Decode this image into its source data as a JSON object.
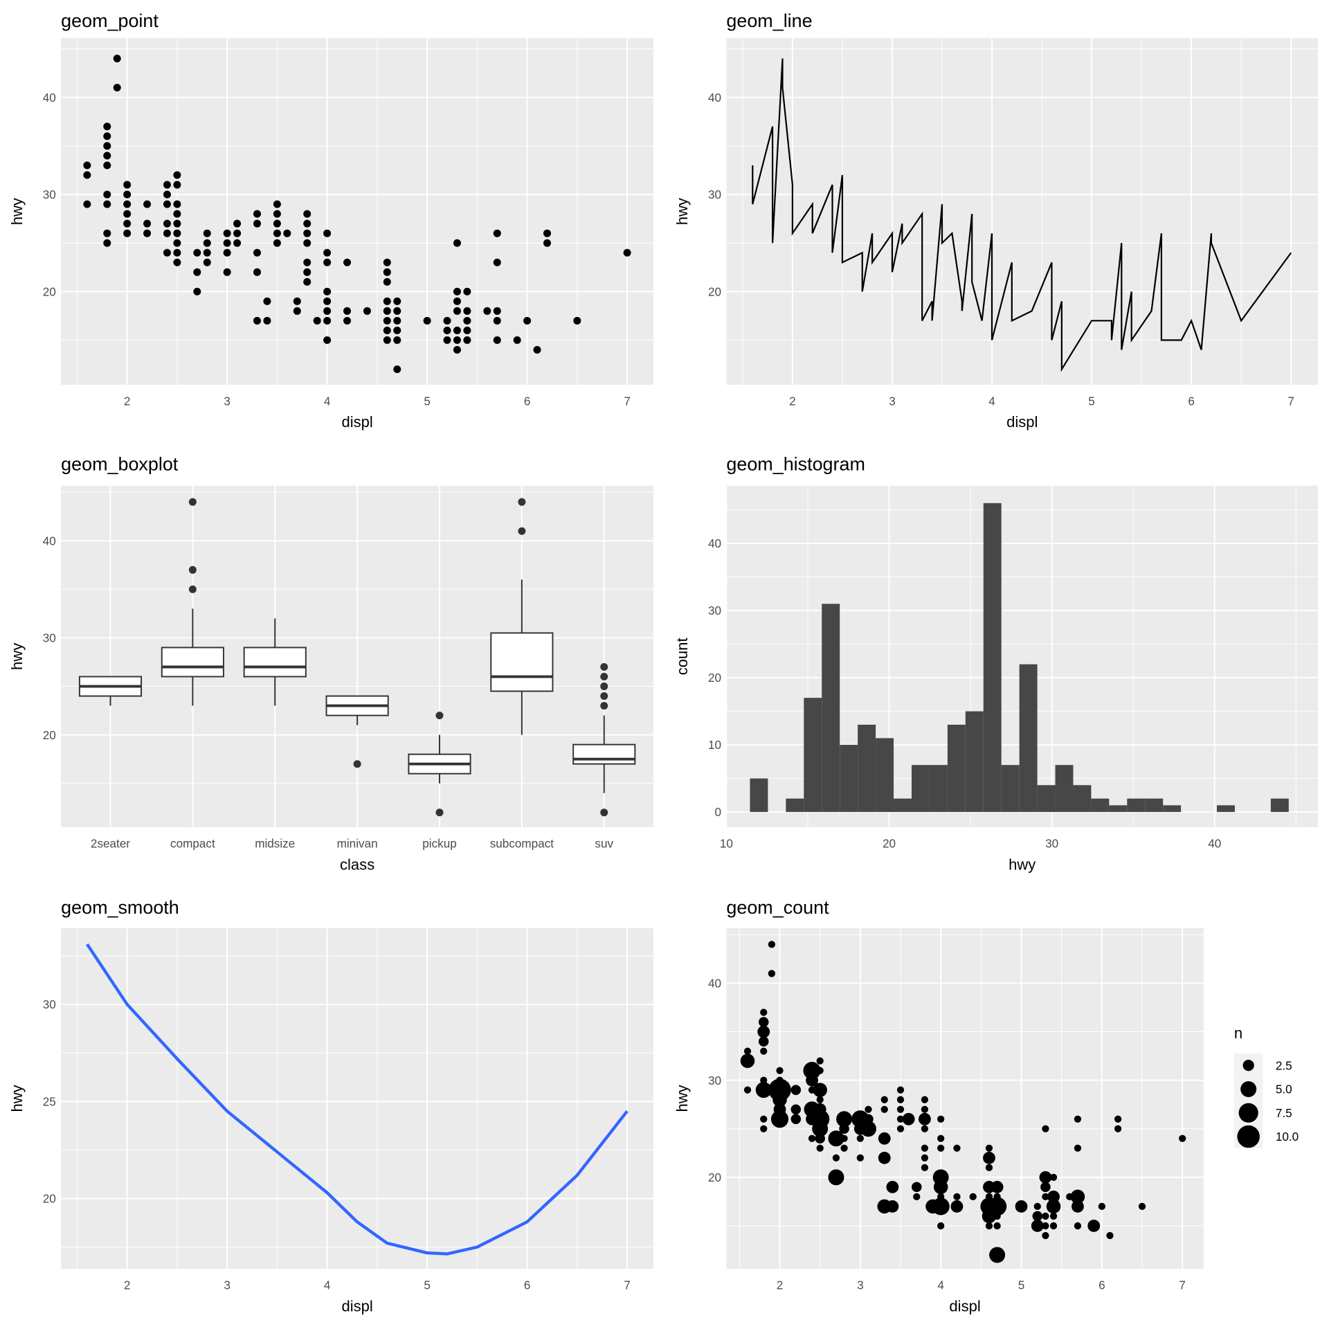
{
  "chart_data": [
    {
      "type": "scatter",
      "title": "geom_point",
      "xlabel": "displ",
      "ylabel": "hwy",
      "xticks": [
        2,
        3,
        4,
        5,
        6,
        7
      ],
      "yticks": [
        20,
        30,
        40
      ],
      "points_by_displ": {
        "1.6": [
          33,
          32,
          29
        ],
        "1.8": [
          37,
          36,
          35,
          34,
          33,
          30,
          29,
          26,
          25
        ],
        "1.9": [
          44,
          41
        ],
        "2.0": [
          31,
          30,
          29,
          28,
          27,
          26
        ],
        "2.2": [
          29,
          27,
          26
        ],
        "2.4": [
          31,
          30,
          29,
          27,
          26,
          24
        ],
        "2.5": [
          32,
          31,
          29,
          28,
          27,
          26,
          25,
          24,
          23
        ],
        "2.7": [
          24,
          22,
          20
        ],
        "2.8": [
          26,
          25,
          24,
          23
        ],
        "3.0": [
          26,
          25,
          24,
          22
        ],
        "3.1": [
          27,
          26,
          25
        ],
        "3.3": [
          28,
          27,
          24,
          22,
          17
        ],
        "3.4": [
          19,
          17
        ],
        "3.5": [
          29,
          28,
          27,
          26,
          25
        ],
        "3.6": [
          26
        ],
        "3.7": [
          19,
          18
        ],
        "3.8": [
          28,
          27,
          26,
          25,
          23,
          22,
          21
        ],
        "3.9": [
          17
        ],
        "4.0": [
          26,
          24,
          23,
          20,
          19,
          18,
          17,
          15
        ],
        "4.2": [
          23,
          18,
          17
        ],
        "4.4": [
          18
        ],
        "4.6": [
          23,
          22,
          21,
          19,
          18,
          17,
          16,
          15
        ],
        "4.7": [
          19,
          18,
          17,
          16,
          15,
          12
        ],
        "5.0": [
          17
        ],
        "5.2": [
          17,
          16,
          15
        ],
        "5.3": [
          25,
          20,
          19,
          18,
          16,
          15,
          14
        ],
        "5.4": [
          20,
          18,
          17,
          16,
          15
        ],
        "5.6": [
          18
        ],
        "5.7": [
          26,
          23,
          18,
          17,
          15
        ],
        "5.9": [
          15
        ],
        "6.0": [
          17
        ],
        "6.1": [
          14
        ],
        "6.2": [
          26,
          25
        ],
        "6.5": [
          17
        ],
        "7.0": [
          24
        ]
      }
    },
    {
      "type": "line",
      "title": "geom_line",
      "xlabel": "displ",
      "ylabel": "hwy",
      "xticks": [
        2,
        3,
        4,
        5,
        6,
        7
      ],
      "yticks": [
        20,
        30,
        40
      ],
      "source": "same points as geom_point, connected in order of displ"
    },
    {
      "type": "boxplot",
      "title": "geom_boxplot",
      "xlabel": "class",
      "ylabel": "hwy",
      "yticks": [
        20,
        30,
        40
      ],
      "categories": [
        "2seater",
        "compact",
        "midsize",
        "minivan",
        "pickup",
        "subcompact",
        "suv"
      ],
      "boxes": [
        {
          "lower": 23,
          "q1": 24,
          "median": 25,
          "q3": 26,
          "upper": 26,
          "outliers": []
        },
        {
          "lower": 23,
          "q1": 26,
          "median": 27,
          "q3": 29,
          "upper": 33,
          "outliers": [
            35,
            37,
            44
          ]
        },
        {
          "lower": 23,
          "q1": 26,
          "median": 27,
          "q3": 29,
          "upper": 32,
          "outliers": []
        },
        {
          "lower": 21,
          "q1": 22,
          "median": 23,
          "q3": 24,
          "upper": 24,
          "outliers": [
            17
          ]
        },
        {
          "lower": 15,
          "q1": 16,
          "median": 17,
          "q3": 18,
          "upper": 20,
          "outliers": [
            12,
            22
          ]
        },
        {
          "lower": 20,
          "q1": 24.5,
          "median": 26,
          "q3": 30.5,
          "upper": 36,
          "outliers": [
            41,
            44
          ]
        },
        {
          "lower": 14,
          "q1": 17,
          "median": 17.5,
          "q3": 19,
          "upper": 22,
          "outliers": [
            12,
            23,
            24,
            25,
            26,
            27
          ]
        }
      ]
    },
    {
      "type": "bar",
      "title": "geom_histogram",
      "xlabel": "hwy",
      "ylabel": "count",
      "xticks": [
        10,
        20,
        30,
        40
      ],
      "yticks": [
        0,
        10,
        20,
        30,
        40
      ],
      "bin_start": 11.45,
      "binwidth": 1.1034,
      "counts": [
        5,
        0,
        2,
        17,
        31,
        10,
        13,
        11,
        2,
        7,
        7,
        13,
        15,
        46,
        7,
        22,
        4,
        7,
        4,
        2,
        1,
        2,
        2,
        1,
        0,
        0,
        1,
        0,
        0,
        2
      ]
    },
    {
      "type": "line",
      "title": "geom_smooth",
      "xlabel": "displ",
      "ylabel": "hwy",
      "xticks": [
        2,
        3,
        4,
        5,
        6,
        7
      ],
      "yticks": [
        20,
        25,
        30
      ],
      "color": "#3366FF",
      "x": [
        1.6,
        2.0,
        2.5,
        3.0,
        3.5,
        4.0,
        4.3,
        4.6,
        5.0,
        5.2,
        5.5,
        6.0,
        6.5,
        7.0
      ],
      "y": [
        33.1,
        30.0,
        27.2,
        24.5,
        22.4,
        20.3,
        18.8,
        17.7,
        17.2,
        17.15,
        17.5,
        18.8,
        21.2,
        24.5
      ]
    },
    {
      "type": "scatter",
      "title": "geom_count",
      "xlabel": "displ",
      "ylabel": "hwy",
      "xticks": [
        2,
        3,
        4,
        5,
        6,
        7
      ],
      "yticks": [
        20,
        30,
        40
      ],
      "legend": {
        "title": "n",
        "labels": [
          "2.5",
          "5.0",
          "7.5",
          "10.0"
        ],
        "values": [
          2.5,
          5,
          7.5,
          10
        ],
        "position": "right"
      },
      "counts_default": 1,
      "counts": {
        "1.6@32": 4,
        "1.8@29": 5,
        "1.8@35": 3,
        "1.8@36": 2,
        "1.8@34": 2,
        "2.0@29": 10,
        "2.0@26": 6,
        "2.0@28": 4,
        "2.0@27": 3,
        "2.2@29": 2,
        "2.2@27": 2,
        "2.2@26": 2,
        "2.4@31": 6,
        "2.4@30": 3,
        "2.4@27": 5,
        "2.4@26": 3,
        "2.5@29": 4,
        "2.5@26": 7,
        "2.5@25": 5,
        "2.5@27": 3,
        "2.5@24": 2,
        "2.7@24": 5,
        "2.7@20": 5,
        "2.8@26": 5,
        "2.8@25": 2,
        "3.0@26": 6,
        "3.0@25": 3,
        "3.1@26": 2,
        "3.1@25": 5,
        "3.3@24": 3,
        "3.3@22": 3,
        "3.3@17": 4,
        "3.4@19": 3,
        "3.4@17": 3,
        "3.6@26": 3,
        "3.7@19": 2,
        "3.8@26": 3,
        "3.9@17": 4,
        "4.0@20": 5,
        "4.0@19": 4,
        "4.0@17": 6,
        "4.2@17": 3,
        "4.6@22": 3,
        "4.6@19": 3,
        "4.6@17": 6,
        "4.6@16": 4,
        "4.7@19": 3,
        "4.7@17": 7,
        "4.7@12": 5,
        "5.0@17": 3,
        "5.2@16": 2,
        "5.2@15": 3,
        "5.3@20": 3,
        "5.3@19": 2,
        "5.4@18": 3,
        "5.4@17": 4,
        "5.7@18": 4,
        "5.7@17": 3,
        "5.9@15": 3
      }
    }
  ]
}
